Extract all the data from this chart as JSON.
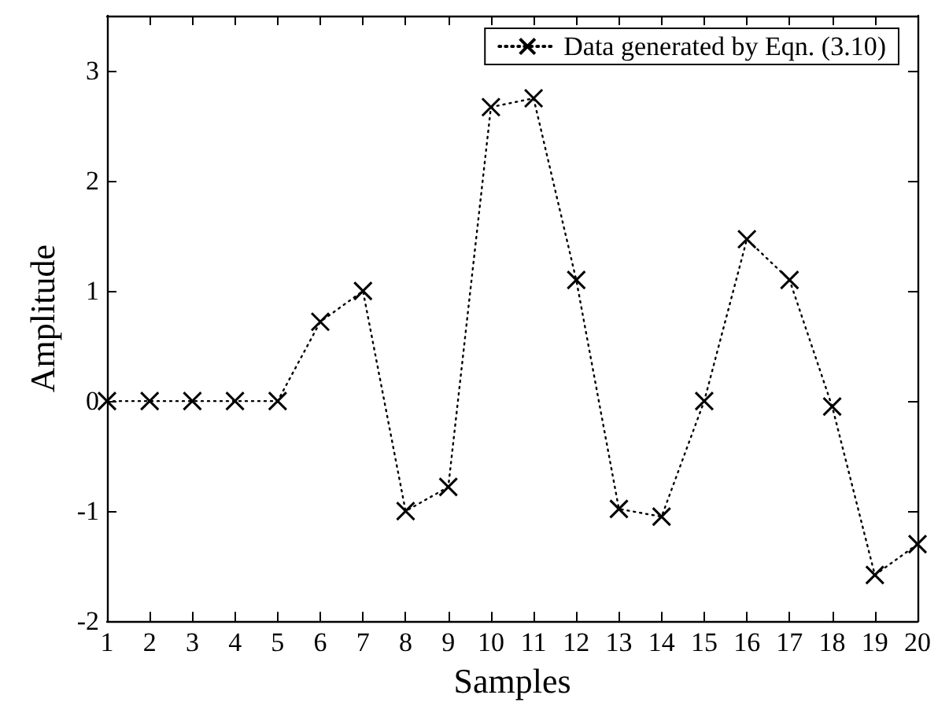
{
  "chart_data": {
    "type": "line",
    "xlabel": "Samples",
    "ylabel": "Amplitude",
    "x": [
      1,
      2,
      3,
      4,
      5,
      6,
      7,
      8,
      9,
      10,
      11,
      12,
      13,
      14,
      15,
      16,
      17,
      18,
      19,
      20
    ],
    "series": [
      {
        "name": "Data generated by Eqn. (3.10)",
        "color": "#000000",
        "values": [
          0,
          0,
          0,
          0,
          0,
          0.72,
          1.0,
          -1.0,
          -0.78,
          2.67,
          2.75,
          1.1,
          -0.98,
          -1.05,
          0,
          1.47,
          1.1,
          -0.05,
          -1.58,
          -1.3
        ]
      }
    ],
    "xlim": [
      1,
      20
    ],
    "xticks": [
      1,
      2,
      3,
      4,
      5,
      6,
      7,
      8,
      9,
      10,
      11,
      12,
      13,
      14,
      15,
      16,
      17,
      18,
      19,
      20
    ],
    "ylim": [
      -2,
      3.5
    ],
    "yticks": [
      -2,
      -1,
      0,
      1,
      2,
      3
    ],
    "grid": false,
    "legend": "top right",
    "marker": "cross",
    "line_style": "dotted"
  }
}
